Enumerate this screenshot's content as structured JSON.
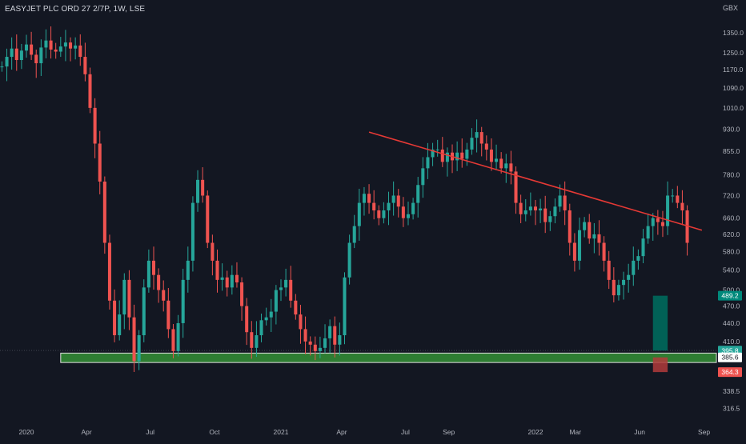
{
  "header": {
    "symbol_line": "EASYJET PLC ORD 27 2/7P, 1W, LSE",
    "currency": "GBX"
  },
  "colors": {
    "background": "#131722",
    "up": "#26a69a",
    "down": "#ef5350",
    "trendline": "#e53935",
    "support_zone": "#2e7d32",
    "target_box": "#00695c",
    "stop_box": "#b23b3b",
    "axis_text": "#b2b5be"
  },
  "chart_data": {
    "type": "candlestick",
    "y_scale": "log",
    "ylim": [
      300,
      1440
    ],
    "x_range": [
      "2020-01-06",
      "2022-09-13"
    ],
    "y_ticks": [
      1350.0,
      1250.0,
      1170.0,
      1090.0,
      1010.0,
      930.0,
      855.0,
      780.0,
      720.0,
      660.0,
      620.0,
      580.0,
      540.0,
      500.0,
      470.0,
      440.0,
      410.0,
      338.5,
      316.5
    ],
    "x_ticks": [
      {
        "label": "2020",
        "date": "2020-01-06"
      },
      {
        "label": "Apr",
        "date": "2020-04-01"
      },
      {
        "label": "Jul",
        "date": "2020-07-01"
      },
      {
        "label": "Oct",
        "date": "2020-10-01"
      },
      {
        "label": "2021",
        "date": "2021-01-04"
      },
      {
        "label": "Apr",
        "date": "2021-04-01"
      },
      {
        "label": "Jul",
        "date": "2021-07-01"
      },
      {
        "label": "Sep",
        "date": "2021-09-01"
      },
      {
        "label": "2022",
        "date": "2022-01-03"
      },
      {
        "label": "Mar",
        "date": "2022-03-01"
      },
      {
        "label": "Jun",
        "date": "2022-06-01"
      },
      {
        "label": "Sep",
        "date": "2022-09-01"
      }
    ],
    "start_date": "2019-12-02",
    "closes": [
      1185,
      1230,
      1270,
      1215,
      1260,
      1290,
      1240,
      1200,
      1275,
      1310,
      1265,
      1255,
      1280,
      1300,
      1270,
      1285,
      1230,
      1150,
      1010,
      880,
      760,
      600,
      480,
      420,
      455,
      520,
      450,
      380,
      420,
      505,
      560,
      530,
      500,
      480,
      430,
      395,
      440,
      520,
      560,
      700,
      765,
      720,
      600,
      560,
      520,
      525,
      505,
      530,
      515,
      470,
      425,
      400,
      420,
      445,
      450,
      460,
      500,
      505,
      520,
      480,
      455,
      430,
      410,
      405,
      395,
      400,
      415,
      435,
      405,
      420,
      525,
      600,
      640,
      700,
      725,
      700,
      680,
      660,
      680,
      700,
      720,
      690,
      660,
      670,
      700,
      750,
      800,
      835,
      860,
      860,
      820,
      850,
      825,
      850,
      830,
      860,
      900,
      920,
      880,
      860,
      820,
      830,
      800,
      815,
      790,
      700,
      670,
      680,
      690,
      680,
      685,
      650,
      665,
      690,
      720,
      680,
      600,
      560,
      630,
      650,
      610,
      620,
      600,
      560,
      520,
      490,
      510,
      520,
      530,
      560,
      570,
      610,
      640,
      660,
      650,
      640,
      720,
      720,
      700,
      680,
      600,
      480,
      470,
      530,
      500,
      545,
      560,
      600,
      560,
      530,
      545,
      555,
      580,
      550,
      520,
      480,
      500,
      540,
      560,
      520,
      490,
      465,
      430,
      405,
      396
    ]
  },
  "annotations": {
    "trendline": {
      "from": {
        "date": "2021-05-10",
        "price": 920
      },
      "to": {
        "date": "2022-08-29",
        "price": 630
      }
    },
    "support_zone": {
      "from_date": "2020-02-24",
      "price_low": 378,
      "price_high": 392
    },
    "target_box": {
      "from_date": "2022-06-20",
      "to_date": "2022-07-11",
      "price_low": 395.8,
      "price_high": 489.2
    },
    "stop_box": {
      "from_date": "2022-06-20",
      "to_date": "2022-07-11",
      "price_low": 364.3,
      "price_high": 385.6
    },
    "price_marks": [
      {
        "label": "489.2",
        "value": 489.2,
        "color": "#00897b"
      },
      {
        "label": "395.8",
        "value": 395.8,
        "color": "#26a69a"
      },
      {
        "label": "385.6",
        "value": 385.6,
        "color": "#ffffff"
      },
      {
        "label": "364.3",
        "value": 364.3,
        "color": "#ef5350"
      }
    ]
  }
}
